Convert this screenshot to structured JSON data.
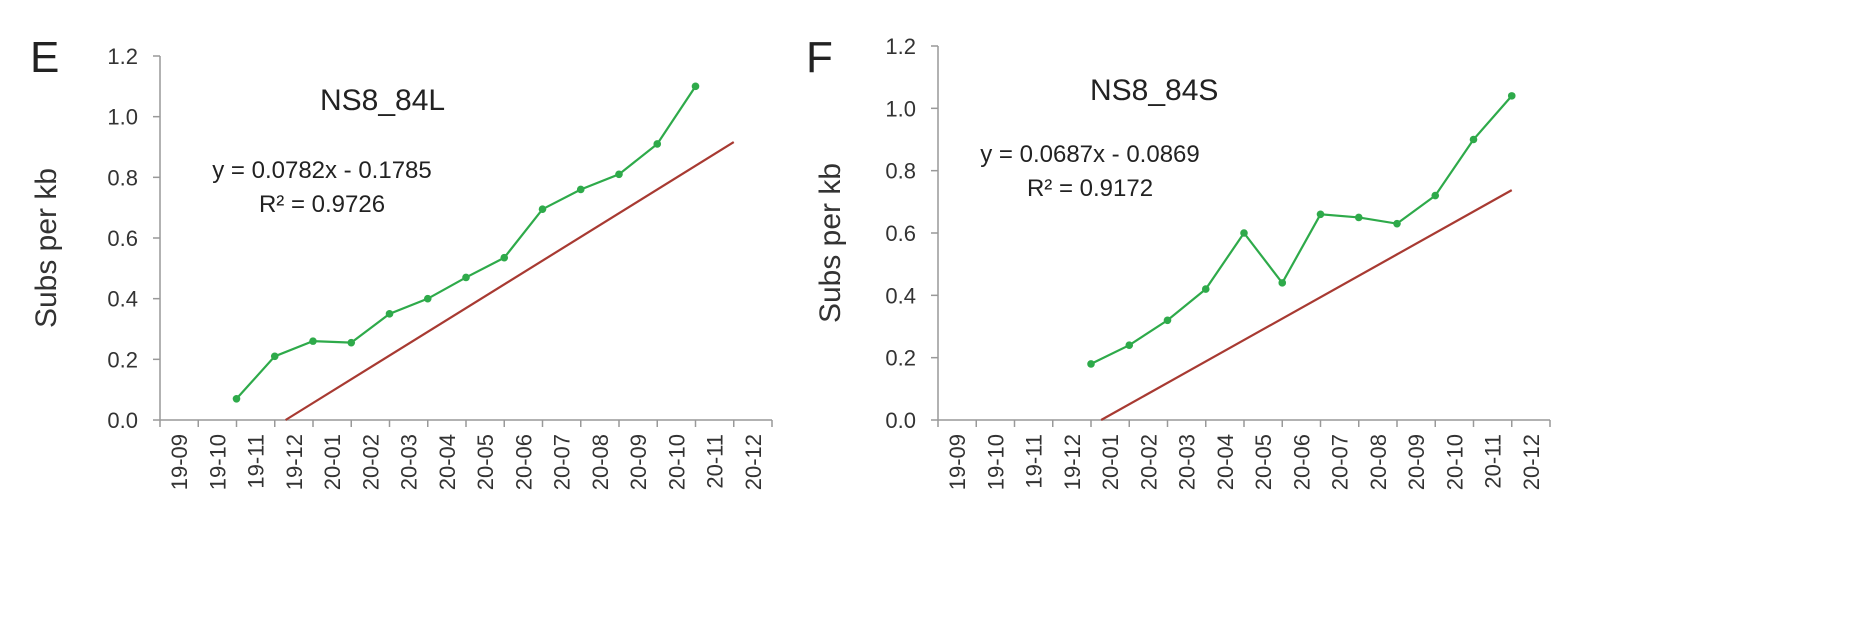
{
  "chart_data": [
    {
      "panel": "E",
      "type": "line",
      "title": "NS8_84L",
      "ylabel": "Subs per kb",
      "xlabel": "",
      "ylim": [
        0,
        1.2
      ],
      "yticks": [
        "0.0",
        "0.2",
        "0.4",
        "0.6",
        "0.8",
        "1.0",
        "1.2"
      ],
      "categories": [
        "19-09",
        "19-10",
        "19-11",
        "19-12",
        "20-01",
        "20-02",
        "20-03",
        "20-04",
        "20-05",
        "20-06",
        "20-07",
        "20-08",
        "20-09",
        "20-10",
        "20-11",
        "20-12"
      ],
      "series": [
        {
          "x": [
            2.0,
            3.0,
            4.0,
            5.0,
            6.0,
            7.0,
            8.0,
            9.0,
            10.0,
            11.0,
            12.0,
            13.0,
            14.0,
            15.0
          ],
          "values": [
            0.07,
            0.21,
            0.26,
            0.255,
            0.35,
            0.4,
            0.47,
            0.535,
            0.695,
            0.76,
            0.81,
            0.91,
            1.1,
            null
          ],
          "color": "#2eaa4a"
        }
      ],
      "trendline": {
        "slope": 0.0782,
        "intercept": -0.1785,
        "color": "#a83a32"
      },
      "annotations": [
        "y = 0.0782x - 0.1785",
        "R² = 0.9726"
      ],
      "grid": false
    },
    {
      "panel": "F",
      "type": "line",
      "title": "NS8_84S",
      "ylabel": "Subs per kb",
      "xlabel": "",
      "ylim": [
        0,
        1.2
      ],
      "yticks": [
        "0.0",
        "0.2",
        "0.4",
        "0.6",
        "0.8",
        "1.0",
        "1.2"
      ],
      "categories": [
        "19-09",
        "19-10",
        "19-11",
        "19-12",
        "20-01",
        "20-02",
        "20-03",
        "20-04",
        "20-05",
        "20-06",
        "20-07",
        "20-08",
        "20-09",
        "20-10",
        "20-11",
        "20-12"
      ],
      "series": [
        {
          "x": [
            4.0,
            5.0,
            6.0,
            7.0,
            8.0,
            9.0,
            10.0,
            11.0,
            12.0,
            13.0,
            14.0,
            15.0
          ],
          "values": [
            0.18,
            0.24,
            0.32,
            0.42,
            0.6,
            0.44,
            0.66,
            0.65,
            0.63,
            0.72,
            0.9,
            1.04
          ],
          "color": "#2eaa4a"
        }
      ],
      "trendline": {
        "slope": 0.0687,
        "intercept": -0.0869,
        "color": "#a83a32"
      },
      "annotations": [
        "y = 0.0687x - 0.0869",
        "R² = 0.9172"
      ],
      "grid": false
    }
  ]
}
